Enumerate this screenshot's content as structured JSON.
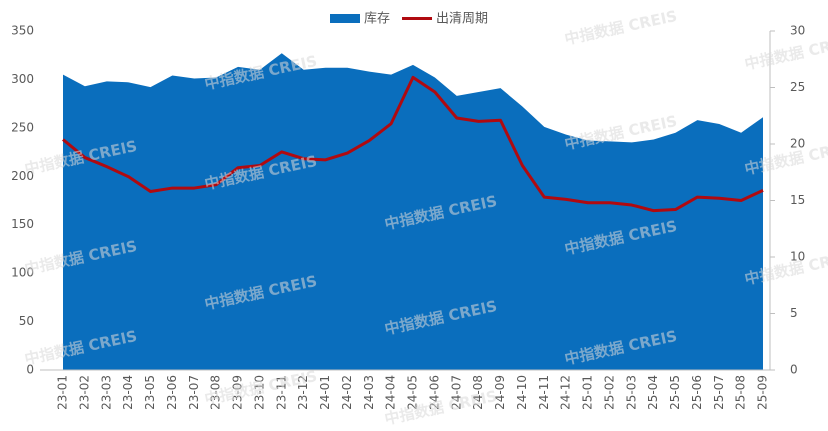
{
  "chart_data": {
    "type": "area-line",
    "watermark": "中指数据 CREIS",
    "categories": [
      "23-01",
      "23-02",
      "23-03",
      "23-04",
      "23-05",
      "23-06",
      "23-07",
      "23-08",
      "23-09",
      "23-10",
      "23-11",
      "23-12",
      "24-01",
      "24-02",
      "24-03",
      "24-04",
      "24-05",
      "24-06",
      "24-07",
      "24-08",
      "24-09",
      "24-10",
      "24-11",
      "24-12",
      "25-01",
      "25-02",
      "25-03",
      "25-04",
      "25-05",
      "25-06",
      "25-07",
      "25-08",
      "25-09"
    ],
    "series": [
      {
        "name": "库存",
        "type": "area",
        "color": "#0a6ebd",
        "values": [
          305,
          293,
          298,
          297,
          292,
          304,
          301,
          302,
          313,
          310,
          327,
          310,
          312,
          312,
          308,
          305,
          315,
          302,
          283,
          287,
          291,
          272,
          251,
          243,
          237,
          236,
          235,
          238,
          245,
          258,
          254,
          245,
          261
        ]
      },
      {
        "name": "出清周期",
        "type": "line",
        "axis": "y2",
        "color": "#b00a10",
        "values": [
          20.4,
          18.8,
          18.0,
          17.1,
          15.8,
          16.1,
          16.1,
          16.4,
          17.9,
          18.1,
          19.3,
          18.7,
          18.6,
          19.2,
          20.3,
          21.8,
          25.9,
          24.6,
          22.3,
          22.0,
          22.1,
          18.1,
          15.3,
          15.1,
          14.8,
          14.8,
          14.6,
          14.1,
          14.2,
          15.3,
          15.2,
          15.0,
          15.9
        ]
      }
    ],
    "ylim": [
      0,
      350
    ],
    "yticks": [
      0,
      50,
      100,
      150,
      200,
      250,
      300,
      350
    ],
    "y2lim": [
      0,
      30
    ],
    "y2ticks": [
      0,
      5,
      10,
      15,
      20,
      25,
      30
    ]
  }
}
